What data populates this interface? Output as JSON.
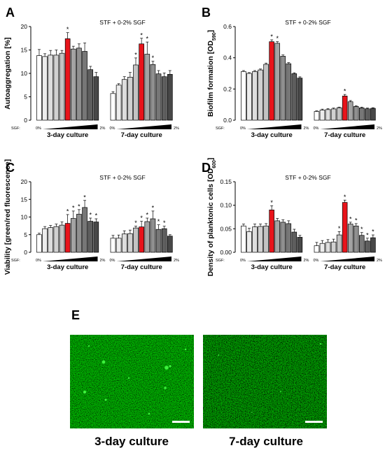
{
  "figure": {
    "panel_e": {
      "letter": "E",
      "captions": [
        "3-day culture",
        "7-day culture"
      ]
    }
  },
  "chart_data": [
    {
      "type": "bar",
      "panel": "A",
      "title": "STF + 0-2% SGF",
      "ylabel": "Autoaggregation [%]",
      "ylim": [
        0,
        20
      ],
      "yticks": [
        "0",
        "5",
        "10",
        "15",
        "20"
      ],
      "groups": [
        "3-day culture",
        "7-day culture"
      ],
      "sgf_label": "SGF:",
      "sgf_min": "0%",
      "sgf_max": "2%",
      "series": [
        {
          "values": [
            13.8,
            13.6,
            13.9,
            13.9,
            14.3,
            17.4,
            15.2,
            15.4,
            14.7,
            10.8,
            9.3
          ],
          "errors": [
            1.3,
            0.6,
            1.0,
            1.1,
            0.6,
            1.3,
            0.6,
            0.9,
            1.8,
            0.7,
            0.9
          ],
          "significant": [
            false,
            false,
            false,
            false,
            false,
            true,
            false,
            false,
            false,
            false,
            false
          ]
        },
        {
          "values": [
            5.7,
            7.5,
            8.7,
            9.2,
            11.8,
            16.3,
            14.1,
            11.9,
            9.9,
            9.3,
            9.8
          ],
          "errors": [
            0.4,
            0.3,
            0.6,
            1.0,
            1.5,
            1.2,
            2.6,
            0.7,
            0.7,
            0.8,
            0.8
          ],
          "significant": [
            false,
            false,
            false,
            false,
            true,
            true,
            true,
            true,
            false,
            false,
            false
          ]
        }
      ],
      "colors": [
        "#ffffff",
        "#ececec",
        "#dedede",
        "#d1d1d1",
        "#c3c3c3",
        "#e8141b",
        "#a4a4a4",
        "#8f8f8f",
        "#777777",
        "#5e5e5e",
        "#484848"
      ]
    },
    {
      "type": "bar",
      "panel": "B",
      "title": "STF + 0-2% SGF",
      "ylabel": "Biofilm formation [OD",
      "ylabel_sub": "590",
      "ylabel_end": "]",
      "ylim": [
        0,
        0.6
      ],
      "yticks": [
        "0.0",
        "0.2",
        "0.4",
        "0.6"
      ],
      "groups": [
        "3-day culture",
        "7-day culture"
      ],
      "sgf_label": "SGF:",
      "sgf_min": "0%",
      "sgf_max": "2%",
      "series": [
        {
          "values": [
            0.312,
            0.3,
            0.312,
            0.322,
            0.358,
            0.503,
            0.493,
            0.41,
            0.362,
            0.298,
            0.27
          ],
          "errors": [
            0.006,
            0.005,
            0.006,
            0.006,
            0.008,
            0.012,
            0.01,
            0.008,
            0.007,
            0.006,
            0.008
          ],
          "significant": [
            false,
            false,
            false,
            false,
            false,
            true,
            true,
            false,
            false,
            false,
            false
          ]
        },
        {
          "values": [
            0.056,
            0.065,
            0.068,
            0.072,
            0.08,
            0.155,
            0.118,
            0.088,
            0.079,
            0.073,
            0.076
          ],
          "errors": [
            0.004,
            0.006,
            0.006,
            0.006,
            0.004,
            0.01,
            0.008,
            0.005,
            0.005,
            0.005,
            0.004
          ],
          "significant": [
            false,
            false,
            false,
            false,
            false,
            true,
            false,
            false,
            false,
            false,
            false
          ]
        }
      ],
      "colors": [
        "#ffffff",
        "#ececec",
        "#dedede",
        "#d1d1d1",
        "#c3c3c3",
        "#e8141b",
        "#a4a4a4",
        "#8f8f8f",
        "#777777",
        "#5e5e5e",
        "#484848"
      ]
    },
    {
      "type": "bar",
      "panel": "C",
      "title": "STF + 0-2% SGF",
      "ylabel": "Viability [green/red fluorescence]",
      "ylim": [
        0,
        20
      ],
      "yticks": [
        "0",
        "5",
        "10",
        "15",
        "20"
      ],
      "groups": [
        "3-day culture",
        "7-day culture"
      ],
      "sgf_label": "SGF:",
      "sgf_min": "0%",
      "sgf_max": "2%",
      "series": [
        {
          "values": [
            5.0,
            6.7,
            7.0,
            7.3,
            7.7,
            8.2,
            9.6,
            10.8,
            12.7,
            8.8,
            8.6
          ],
          "errors": [
            0.4,
            0.6,
            0.6,
            0.7,
            0.9,
            2.5,
            2.1,
            1.3,
            2.0,
            0.9,
            0.9
          ],
          "significant": [
            false,
            false,
            false,
            false,
            false,
            true,
            true,
            true,
            true,
            true,
            true
          ]
        },
        {
          "values": [
            4.0,
            4.0,
            5.2,
            5.3,
            6.9,
            7.2,
            8.7,
            9.5,
            6.5,
            6.7,
            4.6
          ],
          "errors": [
            0.8,
            0.9,
            0.9,
            1.0,
            0.5,
            1.6,
            1.0,
            2.2,
            1.3,
            0.7,
            0.4
          ],
          "significant": [
            false,
            false,
            false,
            false,
            true,
            true,
            true,
            true,
            true,
            true,
            false
          ]
        }
      ],
      "colors": [
        "#ffffff",
        "#ececec",
        "#dedede",
        "#d1d1d1",
        "#c3c3c3",
        "#e8141b",
        "#a4a4a4",
        "#8f8f8f",
        "#777777",
        "#5e5e5e",
        "#484848"
      ]
    },
    {
      "type": "bar",
      "panel": "D",
      "title": "STF + 0-2% SGF",
      "ylabel": "Density of planktonic cells [OD",
      "ylabel_sub": "600",
      "ylabel_end": "]",
      "ylim": [
        0,
        0.15
      ],
      "yticks": [
        "0.00",
        "0.05",
        "0.10",
        "0.15"
      ],
      "groups": [
        "3-day culture",
        "7-day culture"
      ],
      "sgf_label": "SGF:",
      "sgf_min": "0%",
      "sgf_max": "2%",
      "series": [
        {
          "values": [
            0.056,
            0.044,
            0.054,
            0.055,
            0.056,
            0.09,
            0.067,
            0.064,
            0.061,
            0.043,
            0.032
          ],
          "errors": [
            0.004,
            0.007,
            0.006,
            0.005,
            0.005,
            0.009,
            0.005,
            0.005,
            0.006,
            0.006,
            0.004
          ],
          "significant": [
            false,
            false,
            false,
            false,
            false,
            true,
            false,
            false,
            false,
            false,
            false
          ]
        },
        {
          "values": [
            0.014,
            0.019,
            0.021,
            0.022,
            0.037,
            0.106,
            0.06,
            0.056,
            0.036,
            0.024,
            0.031
          ],
          "errors": [
            0.007,
            0.006,
            0.006,
            0.006,
            0.007,
            0.005,
            0.004,
            0.005,
            0.006,
            0.006,
            0.006
          ],
          "significant": [
            false,
            false,
            false,
            false,
            true,
            true,
            true,
            true,
            true,
            true,
            true
          ]
        }
      ],
      "colors": [
        "#ffffff",
        "#ececec",
        "#dedede",
        "#d1d1d1",
        "#c3c3c3",
        "#e8141b",
        "#a4a4a4",
        "#8f8f8f",
        "#777777",
        "#5e5e5e",
        "#484848"
      ]
    }
  ]
}
